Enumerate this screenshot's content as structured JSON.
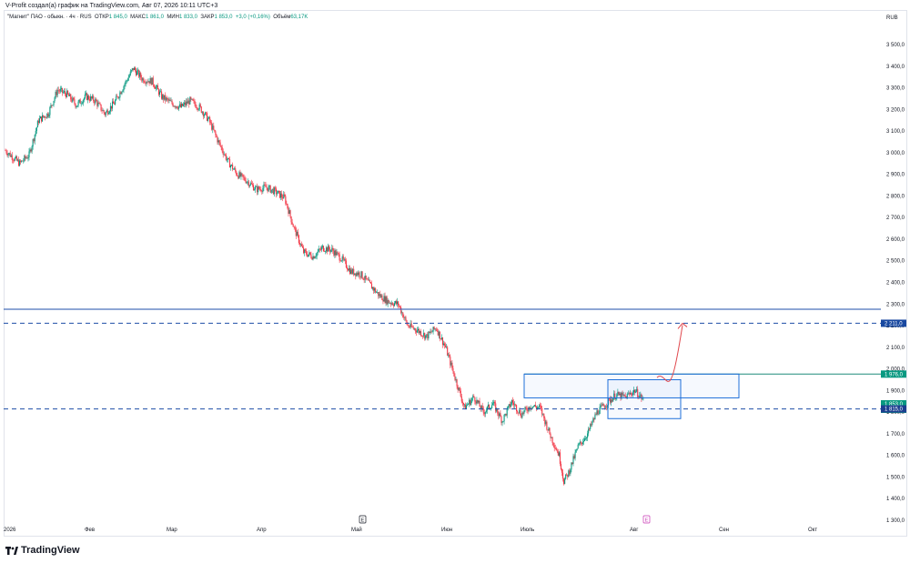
{
  "header": {
    "caption": "V-Profit создал(а) график на TradingView.com, Авг 07, 2026 10:11 UTC+3"
  },
  "legend": {
    "symbol": "\"Магнит\" ПАО - обыкн. · 4ч · RUS",
    "open_label": "ОТКР",
    "open_value": "1 845,0",
    "high_label": "МАКС",
    "high_value": "1 861,0",
    "low_label": "МИН",
    "low_value": "1 833,0",
    "close_label": "ЗАКР",
    "close_value": "1 853,0",
    "change": "+3,0 (+0,16%)",
    "volume_label": "Объём",
    "volume_value": "63,17K"
  },
  "currency": "RUB",
  "footer": {
    "logo_text": "TradingView"
  },
  "colors": {
    "up": "#089981",
    "down": "#f23645",
    "level_line": "#1e4ea8",
    "zone_box": "#1e6fd9",
    "resistance_line": "#1e8c7a",
    "forecast_arrow": "#e0474c",
    "badge_blue": "#1848a0",
    "badge_green": "#089981",
    "badge_dark": "#1c3f8f"
  },
  "chart_data": {
    "type": "candlestick",
    "title": "",
    "x_labels": [
      "2026",
      "Фев",
      "Мар",
      "Апр",
      "Май",
      "Июн",
      "Июль",
      "Авг",
      "Сен",
      "Окт"
    ],
    "y_ticks": [
      "3 500,0",
      "3 400,0",
      "3 300,0",
      "3 200,0",
      "3 100,0",
      "3 000,0",
      "2 900,0",
      "2 800,0",
      "2 700,0",
      "2 600,0",
      "2 500,0",
      "2 400,0",
      "2 300,0",
      "2 200,0",
      "2 100,0",
      "2 000,0",
      "1 900,0",
      "1 800,0",
      "1 700,0",
      "1 600,0",
      "1 500,0",
      "1 400,0",
      "1 300,0"
    ],
    "y_tick_values": [
      3500,
      3400,
      3300,
      3200,
      3100,
      3000,
      2900,
      2800,
      2700,
      2600,
      2500,
      2400,
      2300,
      2200,
      2100,
      2000,
      1900,
      1800,
      1700,
      1600,
      1500,
      1400,
      1300
    ],
    "ylim": [
      1270,
      3580
    ],
    "price_path_approx": [
      [
        0,
        3010
      ],
      [
        3,
        2950
      ],
      [
        5,
        2990
      ],
      [
        7,
        3150
      ],
      [
        9,
        3180
      ],
      [
        11,
        3290
      ],
      [
        13,
        3270
      ],
      [
        15,
        3220
      ],
      [
        17,
        3260
      ],
      [
        19,
        3240
      ],
      [
        21,
        3180
      ],
      [
        23,
        3230
      ],
      [
        25,
        3310
      ],
      [
        27,
        3390
      ],
      [
        29,
        3340
      ],
      [
        31,
        3330
      ],
      [
        33,
        3260
      ],
      [
        35,
        3230
      ],
      [
        37,
        3210
      ],
      [
        39,
        3240
      ],
      [
        41,
        3210
      ],
      [
        43,
        3150
      ],
      [
        45,
        3050
      ],
      [
        47,
        2960
      ],
      [
        49,
        2900
      ],
      [
        51,
        2870
      ],
      [
        53,
        2830
      ],
      [
        55,
        2840
      ],
      [
        57,
        2820
      ],
      [
        59,
        2790
      ],
      [
        61,
        2650
      ],
      [
        63,
        2540
      ],
      [
        65,
        2520
      ],
      [
        67,
        2560
      ],
      [
        69,
        2550
      ],
      [
        71,
        2510
      ],
      [
        73,
        2450
      ],
      [
        75,
        2440
      ],
      [
        77,
        2390
      ],
      [
        79,
        2340
      ],
      [
        81,
        2310
      ],
      [
        83,
        2300
      ],
      [
        85,
        2200
      ],
      [
        87,
        2180
      ],
      [
        89,
        2150
      ],
      [
        91,
        2190
      ],
      [
        93,
        2100
      ],
      [
        95,
        1960
      ],
      [
        97,
        1820
      ],
      [
        99,
        1870
      ],
      [
        101,
        1800
      ],
      [
        103,
        1840
      ],
      [
        105,
        1760
      ],
      [
        107,
        1850
      ],
      [
        109,
        1790
      ],
      [
        111,
        1830
      ],
      [
        113,
        1820
      ],
      [
        115,
        1700
      ],
      [
        117,
        1600
      ],
      [
        118,
        1480
      ],
      [
        119,
        1520
      ],
      [
        121,
        1640
      ],
      [
        123,
        1700
      ],
      [
        125,
        1800
      ],
      [
        127,
        1840
      ],
      [
        129,
        1880
      ],
      [
        131,
        1870
      ],
      [
        133,
        1900
      ],
      [
        135,
        1853
      ]
    ],
    "annotations": {
      "solid_level": 2276,
      "dashed_level_upper": 2211,
      "dashed_level_lower": 1815,
      "resistance_level": 1976,
      "zone_box_large": [
        1976,
        1866
      ],
      "zone_box_small": [
        1950,
        1770
      ],
      "last_price": 1853,
      "forecast_target": 2211
    },
    "price_badges": [
      {
        "label": "2 211,0",
        "value": 2211,
        "style": "blue"
      },
      {
        "label": "1 976,0",
        "value": 1976,
        "style": "green"
      },
      {
        "label": "1 853,0",
        "sub": "48:22",
        "value": 1853,
        "style": "green"
      },
      {
        "label": "1 815,0",
        "value": 1815,
        "style": "dark"
      }
    ],
    "event_markers": [
      {
        "label": "E",
        "month": "Май"
      },
      {
        "label": "E",
        "month": "Авг"
      }
    ]
  }
}
